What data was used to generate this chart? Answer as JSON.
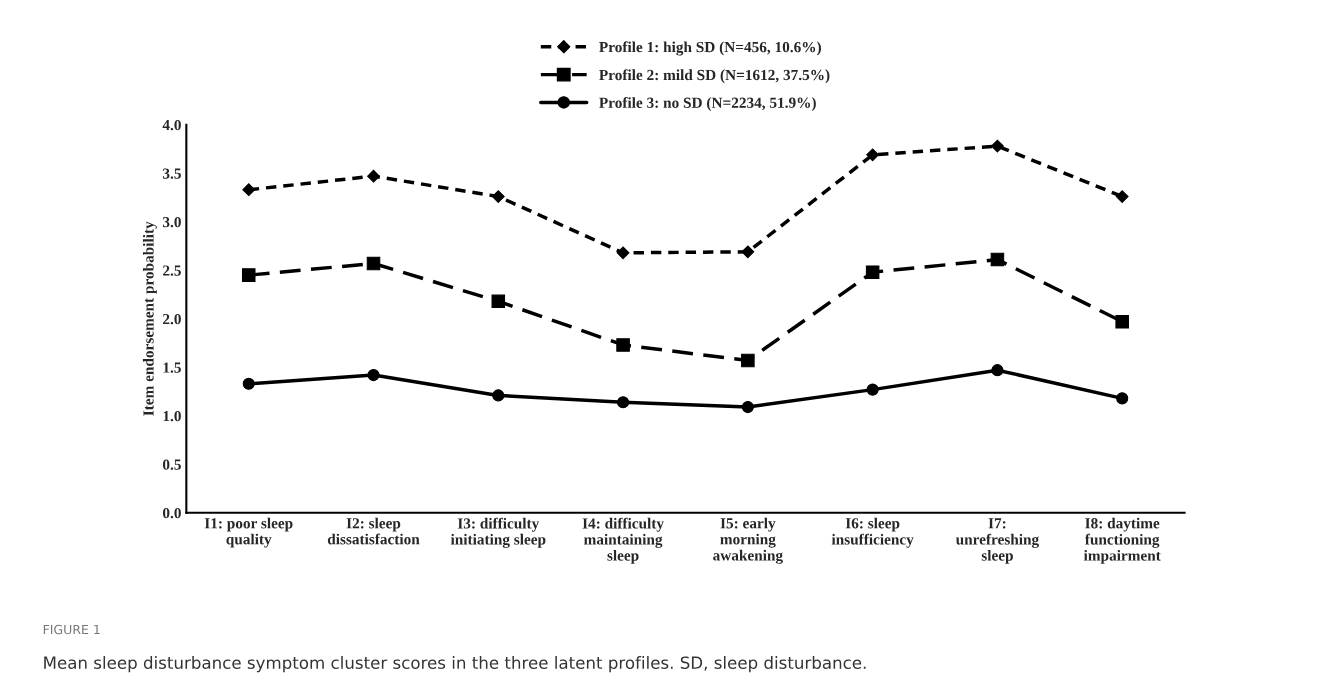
{
  "chart_data": {
    "type": "line",
    "ylabel": "Item endorsement probability",
    "categories": [
      "I1: poor sleep\nquality",
      "I2: sleep\ndissatisfaction",
      "I3: difficulty\ninitiating sleep",
      "I4: difficulty\nmaintaining\nsleep",
      "I5: early\nmorning\nawakening",
      "I6: sleep\ninsufficiency",
      "I7:\nunrefreshing\nsleep",
      "I8: daytime\nfunctioning\nimpairment"
    ],
    "series": [
      {
        "name": "Profile 1: high SD (N=456, 10.6%)",
        "color": "#000000",
        "marker": "diamond",
        "line_style": "dotted",
        "values": [
          3.33,
          3.47,
          3.26,
          2.68,
          2.69,
          3.69,
          3.78,
          3.26
        ]
      },
      {
        "name": "Profile 2: mild SD (N=1612, 37.5%)",
        "color": "#000000",
        "marker": "square",
        "line_style": "dashed",
        "values": [
          2.45,
          2.57,
          2.18,
          1.73,
          1.57,
          2.48,
          2.61,
          1.97
        ]
      },
      {
        "name": "Profile 3: no SD (N=2234, 51.9%)",
        "color": "#000000",
        "marker": "circle",
        "line_style": "solid",
        "values": [
          1.33,
          1.42,
          1.21,
          1.14,
          1.09,
          1.27,
          1.47,
          1.18
        ]
      }
    ],
    "ylim": [
      0,
      4
    ],
    "yticks": [
      {
        "value": 0,
        "label": "0.0"
      },
      {
        "value": 0.5,
        "label": "0.5"
      },
      {
        "value": 1,
        "label": "1.0"
      },
      {
        "value": 1.5,
        "label": "1.5"
      },
      {
        "value": 2,
        "label": "2.0"
      },
      {
        "value": 2.5,
        "label": "2.5"
      },
      {
        "value": 3,
        "label": "3.0"
      },
      {
        "value": 3.5,
        "label": "3.5"
      },
      {
        "value": 4,
        "label": "4.0"
      }
    ],
    "grid": false,
    "legend": "top",
    "annotations": [
      "FIGURE 1",
      "Mean sleep disturbance symptom cluster scores in the three latent profiles. SD, sleep disturbance."
    ]
  }
}
